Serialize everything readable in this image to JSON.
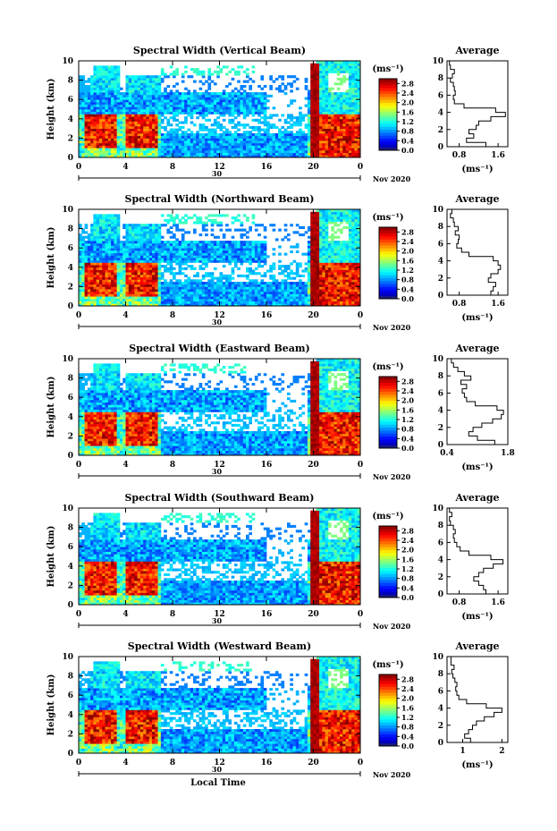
{
  "figure": {
    "xlabel": "Local Time",
    "date_label": "Nov 2020",
    "day_label": "30",
    "colorbar_unit": "(ms⁻¹)",
    "average_title": "Average",
    "average_xlabel": "(ms⁻¹)"
  },
  "chart_data": [
    {
      "type": "heatmap",
      "title": "Spectral Width (Vertical Beam)",
      "ylabel": "Height (km)",
      "xlabel": "",
      "x_ticks": [
        "0",
        "4",
        "8",
        "12",
        "16",
        "20",
        "0"
      ],
      "xlim": [
        0,
        24
      ],
      "y_ticks": [
        "0",
        "2",
        "4",
        "6",
        "8",
        "10"
      ],
      "ylim": [
        0,
        10
      ],
      "colorbar": {
        "ticks": [
          "0.0",
          "0.4",
          "0.8",
          "1.2",
          "1.6",
          "2.0",
          "2.4",
          "2.8"
        ],
        "range": [
          0,
          3.0
        ]
      },
      "average": {
        "title": "Average",
        "x_ticks": [
          "0.8",
          "1.6"
        ],
        "xlim": [
          0.55,
          1.8
        ],
        "heights": [
          0,
          0.5,
          1,
          1.5,
          2,
          2.5,
          3,
          3.5,
          4,
          4.5,
          5,
          5.5,
          6,
          6.5,
          7,
          7.5,
          8,
          8.5,
          9,
          9.5
        ],
        "values": [
          1.35,
          0.95,
          1.1,
          1.0,
          1.15,
          1.2,
          1.45,
          1.75,
          1.55,
          0.9,
          0.7,
          0.68,
          0.72,
          0.7,
          0.68,
          0.62,
          0.66,
          0.7,
          0.62,
          0.6
        ]
      }
    },
    {
      "type": "heatmap",
      "title": "Spectral Width (Northward Beam)",
      "ylabel": "Height (km)",
      "xlabel": "",
      "x_ticks": [
        "0",
        "4",
        "8",
        "12",
        "16",
        "20",
        "0"
      ],
      "xlim": [
        0,
        24
      ],
      "y_ticks": [
        "0",
        "2",
        "4",
        "6",
        "8",
        "10"
      ],
      "ylim": [
        0,
        10
      ],
      "colorbar": {
        "ticks": [
          "0.0",
          "0.4",
          "0.8",
          "1.2",
          "1.6",
          "2.0",
          "2.4",
          "2.8"
        ],
        "range": [
          0,
          3.0
        ]
      },
      "average": {
        "title": "Average",
        "x_ticks": [
          "0.8",
          "1.6"
        ],
        "xlim": [
          0.55,
          1.8
        ],
        "heights": [
          0,
          0.5,
          1,
          1.5,
          2,
          2.5,
          3,
          3.5,
          4,
          4.5,
          5,
          5.5,
          6,
          6.5,
          7,
          7.5,
          8,
          8.5,
          9,
          9.5
        ],
        "values": [
          1.45,
          1.5,
          1.55,
          1.4,
          1.45,
          1.6,
          1.65,
          1.6,
          1.5,
          1.0,
          0.85,
          0.75,
          0.78,
          0.8,
          0.72,
          0.78,
          0.7,
          0.68,
          0.62,
          0.65
        ]
      }
    },
    {
      "type": "heatmap",
      "title": "Spectral Width (Eastward Beam)",
      "ylabel": "Height (km)",
      "xlabel": "",
      "x_ticks": [
        "0",
        "4",
        "8",
        "12",
        "16",
        "20",
        "0"
      ],
      "xlim": [
        0,
        24
      ],
      "y_ticks": [
        "0",
        "2",
        "4",
        "6",
        "8",
        "10"
      ],
      "ylim": [
        0,
        10
      ],
      "colorbar": {
        "ticks": [
          "0.0",
          "0.4",
          "0.8",
          "1.2",
          "1.6",
          "2.0",
          "2.4",
          "2.8"
        ],
        "range": [
          0,
          3.0
        ]
      },
      "average": {
        "title": "Average",
        "x_ticks": [
          "0.4",
          "1.8"
        ],
        "xlim": [
          0.4,
          1.8
        ],
        "heights": [
          0,
          0.5,
          1,
          1.5,
          2,
          2.5,
          3,
          3.5,
          4,
          4.5,
          5,
          5.5,
          6,
          6.5,
          7,
          7.5,
          8,
          8.5,
          9,
          9.5
        ],
        "values": [
          1.5,
          1.1,
          0.9,
          1.0,
          1.2,
          1.45,
          1.65,
          1.7,
          1.55,
          1.05,
          0.85,
          0.8,
          0.75,
          0.85,
          0.72,
          0.95,
          0.8,
          0.65,
          0.55,
          0.5
        ]
      }
    },
    {
      "type": "heatmap",
      "title": "Spectral Width (Southward Beam)",
      "ylabel": "Height (km)",
      "xlabel": "",
      "x_ticks": [
        "0",
        "4",
        "8",
        "12",
        "16",
        "20",
        "0"
      ],
      "xlim": [
        0,
        24
      ],
      "y_ticks": [
        "0",
        "2",
        "4",
        "6",
        "8",
        "10"
      ],
      "ylim": [
        0,
        10
      ],
      "colorbar": {
        "ticks": [
          "0.0",
          "0.4",
          "0.8",
          "1.2",
          "1.6",
          "2.0",
          "2.4",
          "2.8"
        ],
        "range": [
          0,
          3.0
        ]
      },
      "average": {
        "title": "Average",
        "x_ticks": [
          "0.8",
          "1.6"
        ],
        "xlim": [
          0.55,
          1.8
        ],
        "heights": [
          0,
          0.5,
          1,
          1.5,
          2,
          2.5,
          3,
          3.5,
          4,
          4.5,
          5,
          5.5,
          6,
          6.5,
          7,
          7.5,
          8,
          8.5,
          9,
          9.5
        ],
        "values": [
          1.35,
          1.3,
          1.2,
          1.1,
          1.2,
          1.3,
          1.5,
          1.7,
          1.45,
          1.0,
          0.82,
          0.75,
          0.7,
          0.68,
          0.72,
          0.68,
          0.62,
          0.6,
          0.65,
          0.6
        ]
      }
    },
    {
      "type": "heatmap",
      "title": "Spectral Width (Westward Beam)",
      "ylabel": "Height (km)",
      "xlabel": "Local Time",
      "x_ticks": [
        "0",
        "4",
        "8",
        "12",
        "16",
        "20",
        "0"
      ],
      "xlim": [
        0,
        24
      ],
      "y_ticks": [
        "0",
        "2",
        "4",
        "6",
        "8",
        "10"
      ],
      "ylim": [
        0,
        10
      ],
      "colorbar": {
        "ticks": [
          "0.0",
          "0.4",
          "0.8",
          "1.2",
          "1.6",
          "2.0",
          "2.4",
          "2.8"
        ],
        "range": [
          0,
          3.0
        ]
      },
      "average": {
        "title": "Average",
        "x_ticks": [
          "1",
          "2"
        ],
        "xlim": [
          0.6,
          2.15
        ],
        "heights": [
          0,
          0.5,
          1,
          1.5,
          2,
          2.5,
          3,
          3.5,
          4,
          4.5,
          5,
          5.5,
          6,
          6.5,
          7,
          7.5,
          8,
          8.5,
          9,
          9.5
        ],
        "values": [
          1.2,
          1.05,
          1.15,
          1.25,
          1.35,
          1.55,
          1.8,
          2.0,
          1.6,
          1.1,
          0.9,
          0.85,
          0.82,
          0.85,
          0.8,
          0.75,
          0.72,
          0.78,
          0.7,
          0.7
        ]
      }
    }
  ]
}
